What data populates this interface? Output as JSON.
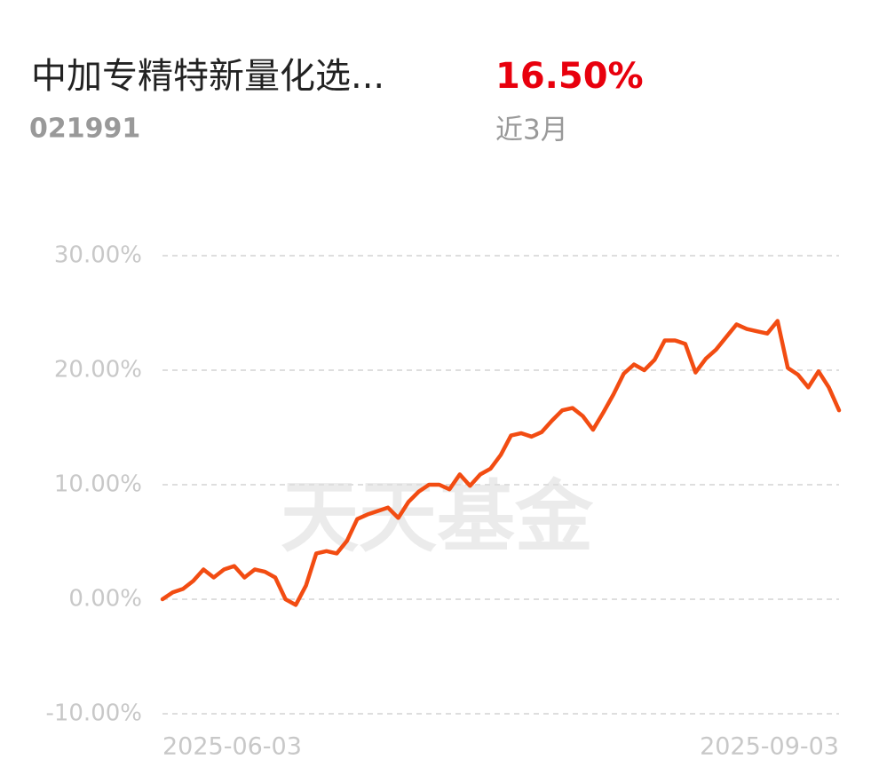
{
  "chart_data": {
    "type": "line",
    "title": "中加专精特新量化选...",
    "code": "021991",
    "return": "16.50%",
    "period": "近3月",
    "watermark": "天天基金",
    "categories": [
      "2025-06-03",
      null,
      null,
      null,
      null,
      null,
      null,
      null,
      null,
      null,
      null,
      null,
      null,
      null,
      null,
      null,
      null,
      null,
      null,
      null,
      null,
      null,
      null,
      null,
      null,
      null,
      null,
      null,
      null,
      null,
      null,
      null,
      null,
      null,
      null,
      null,
      null,
      null,
      null,
      null,
      null,
      null,
      null,
      null,
      null,
      null,
      null,
      null,
      null,
      null,
      null,
      null,
      null,
      null,
      null,
      null,
      null,
      null,
      null,
      null,
      null,
      null,
      null,
      null,
      null,
      null,
      "2025-09-03"
    ],
    "series": [
      {
        "name": "中加专精特新量化选...",
        "color": "#f24c12",
        "values": [
          0,
          0.6,
          0.9,
          1.6,
          2.6,
          1.9,
          2.6,
          2.9,
          1.9,
          2.6,
          2.4,
          1.9,
          0,
          -0.5,
          1.2,
          4.0,
          4.2,
          4.0,
          5.1,
          7.0,
          7.4,
          7.7,
          8.0,
          7.1,
          8.5,
          9.4,
          10.0,
          10.0,
          9.6,
          10.9,
          9.9,
          10.9,
          11.4,
          12.6,
          14.3,
          14.5,
          14.2,
          14.6,
          15.6,
          16.5,
          16.7,
          16.0,
          14.8,
          16.3,
          17.9,
          19.7,
          20.5,
          20.0,
          20.9,
          22.6,
          22.6,
          22.3,
          19.8,
          21.0,
          21.8,
          22.9,
          24.0,
          23.6,
          23.4,
          23.2,
          24.3,
          20.2,
          19.6,
          18.5,
          19.9,
          18.5,
          16.5
        ]
      }
    ],
    "ylim": [
      -10,
      30
    ],
    "yticks": [
      {
        "value": -10,
        "label": "-10.00%"
      },
      {
        "value": 0,
        "label": "0.00%"
      },
      {
        "value": 10,
        "label": "10.00%"
      },
      {
        "value": 20,
        "label": "20.00%"
      },
      {
        "value": 30,
        "label": "30.00%"
      }
    ],
    "grid": true
  }
}
